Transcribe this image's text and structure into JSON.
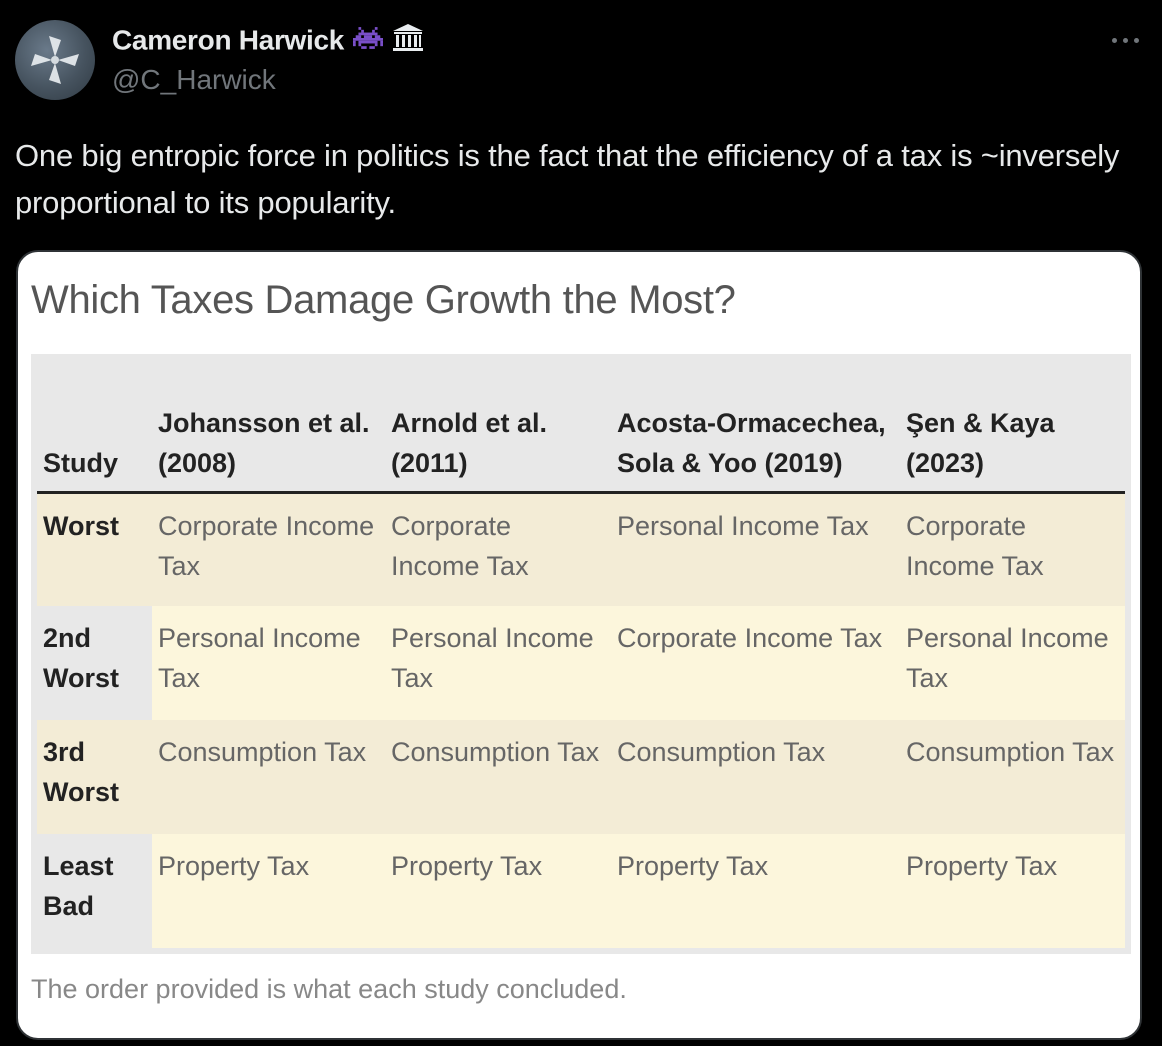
{
  "tweet": {
    "author_name": "Cameron Harwick",
    "author_handle": "@C_Harwick",
    "badge_icons": [
      "space-invader-icon",
      "bank-icon"
    ],
    "more_icon": "more-horizontal-icon",
    "text": "One big entropic force in politics is the fact that the efficiency of a tax is ~inversely proportional to its popularity."
  },
  "media": {
    "title": "Which Taxes Damage Growth the Most?",
    "caption": "The order provided is what each study concluded.",
    "table": {
      "headers": [
        "Study",
        "Johansson et al. (2008)",
        "Arnold et al. (2011)",
        "Acosta-Ormacechea, Sola & Yoo (2019)",
        "Şen & Kaya (2023)"
      ],
      "rows": [
        {
          "label": "Worst",
          "cells": [
            "Corporate Income Tax",
            "Corporate Income Tax",
            "Personal Income Tax",
            "Corporate Income Tax"
          ]
        },
        {
          "label": "2nd Worst",
          "cells": [
            "Personal Income Tax",
            "Personal Income Tax",
            "Corporate Income Tax",
            "Personal Income Tax"
          ]
        },
        {
          "label": "3rd Worst",
          "cells": [
            "Consumption Tax",
            "Consumption Tax",
            "Consumption Tax",
            "Consumption Tax"
          ]
        },
        {
          "label": "Least Bad",
          "cells": [
            "Property Tax",
            "Property Tax",
            "Property Tax",
            "Property Tax"
          ]
        }
      ]
    }
  },
  "colors": {
    "background": "#000000",
    "text_primary": "#e7e9ea",
    "text_secondary": "#71767b",
    "row_shade_odd": "#f3ecd6",
    "row_shade_even": "#fcf6dc",
    "badge_purple": "#7a4fc9"
  }
}
